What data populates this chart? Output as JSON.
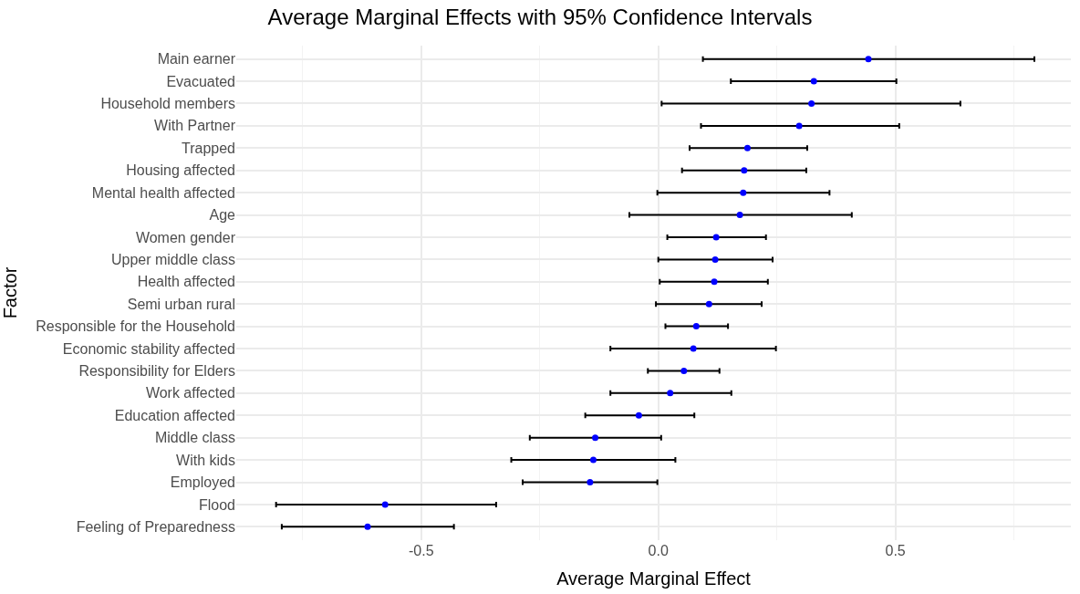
{
  "chart_data": {
    "type": "scatter",
    "orientation": "horizontal",
    "title": "Average Marginal Effects with 95% Confidence Intervals",
    "xlabel": "Average Marginal Effect",
    "ylabel": "Factor",
    "categories": [
      "Main earner",
      "Evacuated",
      "Household members",
      "With Partner",
      "Trapped",
      "Housing affected",
      "Mental health affected",
      "Age",
      "Women gender",
      "Upper middle class",
      "Health affected",
      "Semi urban rural",
      "Responsible for the Household",
      "Economic stability affected",
      "Responsibility for Elders",
      "Work affected",
      "Education affected",
      "Middle class",
      "With kids",
      "Employed",
      "Flood",
      "Feeling of Preparedness"
    ],
    "series": [
      {
        "color": "#0000ff",
        "values": [
          0.443,
          0.328,
          0.323,
          0.297,
          0.188,
          0.181,
          0.179,
          0.172,
          0.122,
          0.12,
          0.118,
          0.107,
          0.08,
          0.074,
          0.054,
          0.025,
          -0.041,
          -0.133,
          -0.137,
          -0.144,
          -0.576,
          -0.613
        ],
        "errors": [
          [
            0.094,
            0.793
          ],
          [
            0.153,
            0.502
          ],
          [
            0.007,
            0.637
          ],
          [
            0.09,
            0.508
          ],
          [
            0.066,
            0.314
          ],
          [
            0.05,
            0.312
          ],
          [
            -0.002,
            0.361
          ],
          [
            -0.061,
            0.408
          ],
          [
            0.019,
            0.227
          ],
          [
            0.0,
            0.241
          ],
          [
            0.003,
            0.231
          ],
          [
            -0.005,
            0.218
          ],
          [
            0.015,
            0.147
          ],
          [
            -0.101,
            0.248
          ],
          [
            -0.022,
            0.129
          ],
          [
            -0.101,
            0.154
          ],
          [
            -0.154,
            0.076
          ],
          [
            -0.271,
            0.006
          ],
          [
            -0.31,
            0.036
          ],
          [
            -0.286,
            -0.002
          ],
          [
            -0.806,
            -0.342
          ],
          [
            -0.794,
            -0.431
          ]
        ]
      }
    ],
    "xlim": [
      -0.89,
      0.87
    ],
    "xticks": [
      {
        "value": -0.75,
        "label": null
      },
      -0.5,
      {
        "value": -0.25,
        "label": null
      },
      {
        "value": 0,
        "label": "0.0"
      },
      {
        "value": 0.25,
        "label": null
      },
      0.5,
      {
        "value": 0.75,
        "label": null
      }
    ],
    "grid": true,
    "marker": "circle"
  }
}
